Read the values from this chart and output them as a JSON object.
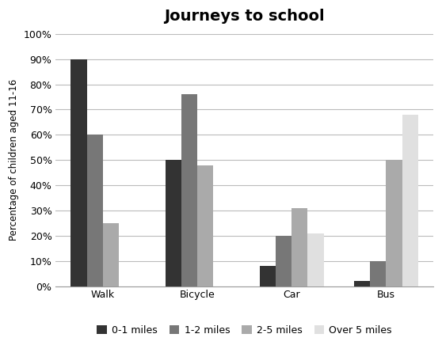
{
  "title": "Journeys to school",
  "ylabel": "Percentage of children aged 11-16",
  "categories": [
    "Walk",
    "Bicycle",
    "Car",
    "Bus"
  ],
  "series": {
    "0-1 miles": [
      90,
      50,
      8,
      2
    ],
    "1-2 miles": [
      60,
      76,
      20,
      10
    ],
    "2-5 miles": [
      25,
      48,
      31,
      50
    ],
    "Over 5 miles": [
      0,
      0,
      21,
      68
    ]
  },
  "series_order": [
    "0-1 miles",
    "1-2 miles",
    "2-5 miles",
    "Over 5 miles"
  ],
  "colors": {
    "0-1 miles": "#333333",
    "1-2 miles": "#777777",
    "2-5 miles": "#aaaaaa",
    "Over 5 miles": "#e0e0e0"
  },
  "ylim": [
    0,
    100
  ],
  "yticks": [
    0,
    10,
    20,
    30,
    40,
    50,
    60,
    70,
    80,
    90,
    100
  ],
  "ytick_labels": [
    "0%",
    "10%",
    "20%",
    "30%",
    "40%",
    "50%",
    "60%",
    "70%",
    "80%",
    "90%",
    "100%"
  ],
  "bar_width": 0.17,
  "background_color": "#ffffff",
  "grid_color": "#bbbbbb",
  "title_fontsize": 14,
  "label_fontsize": 8.5,
  "tick_fontsize": 9,
  "legend_fontsize": 9
}
